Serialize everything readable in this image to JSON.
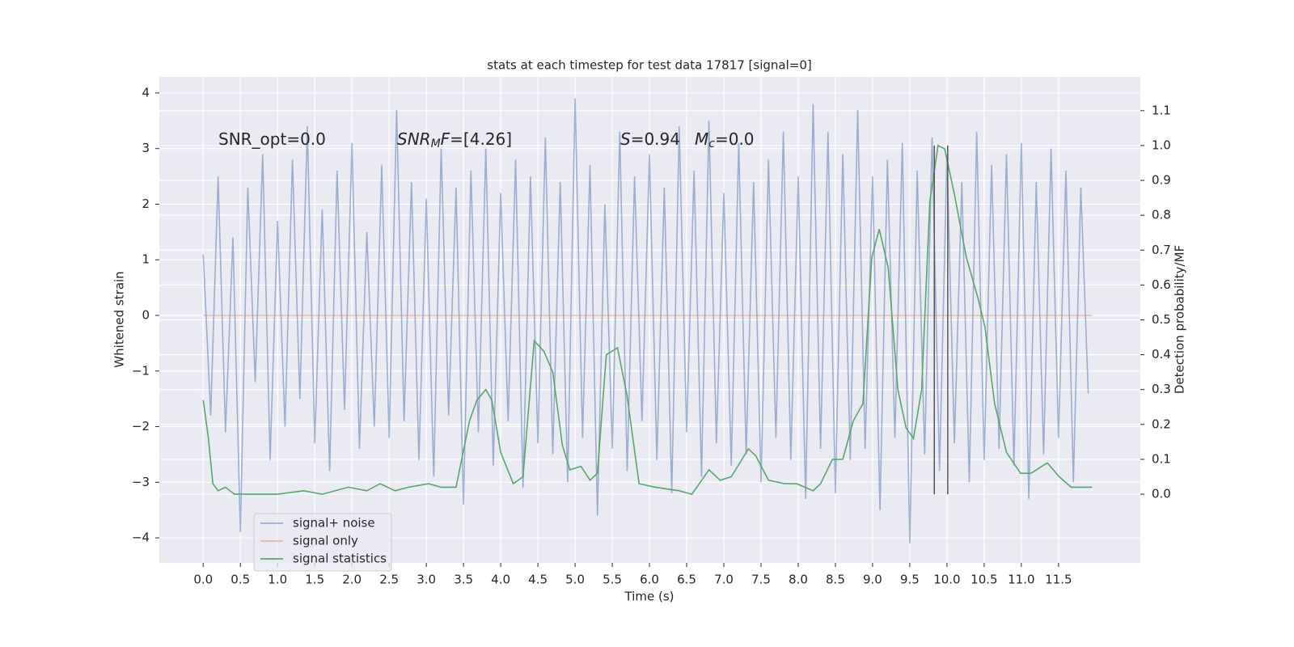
{
  "chart_data": {
    "type": "line",
    "title": "stats at each timestep for test data 17817 [signal=0]",
    "x_label": "Time (s)",
    "y_label": "Whitened strain",
    "y2_label": "Detection probability/MF",
    "xlim": [
      -0.59,
      12.6
    ],
    "ylim": [
      -4.45,
      4.29
    ],
    "y2lim": [
      -0.197,
      1.197
    ],
    "xticks": [
      {
        "value": 0,
        "label": "0.0"
      },
      {
        "value": 0.5,
        "label": "0.5"
      },
      {
        "value": 1,
        "label": "1.0"
      },
      {
        "value": 1.5,
        "label": "1.5"
      },
      {
        "value": 2,
        "label": "2.0"
      },
      {
        "value": 2.5,
        "label": "2.5"
      },
      {
        "value": 3,
        "label": "3.0"
      },
      {
        "value": 3.5,
        "label": "3.5"
      },
      {
        "value": 4,
        "label": "4.0"
      },
      {
        "value": 4.5,
        "label": "4.5"
      },
      {
        "value": 5,
        "label": "5.0"
      },
      {
        "value": 5.5,
        "label": "5.5"
      },
      {
        "value": 6,
        "label": "6.0"
      },
      {
        "value": 6.5,
        "label": "6.5"
      },
      {
        "value": 7,
        "label": "7.0"
      },
      {
        "value": 7.5,
        "label": "7.5"
      },
      {
        "value": 8,
        "label": "8.0"
      },
      {
        "value": 8.5,
        "label": "8.5"
      },
      {
        "value": 9,
        "label": "9.0"
      },
      {
        "value": 9.5,
        "label": "9.5"
      },
      {
        "value": 10,
        "label": "10.0"
      },
      {
        "value": 10.5,
        "label": "10.5"
      },
      {
        "value": 11,
        "label": "11.0"
      },
      {
        "value": 11.5,
        "label": "11.5"
      }
    ],
    "yticks": [
      {
        "value": -4,
        "label": "−4"
      },
      {
        "value": -3,
        "label": "−3"
      },
      {
        "value": -2,
        "label": "−2"
      },
      {
        "value": -1,
        "label": "−1"
      },
      0,
      1,
      2,
      3,
      4
    ],
    "y2ticks": [
      {
        "value": 0,
        "label": "0.0"
      },
      {
        "value": 0.1,
        "label": "0.1"
      },
      {
        "value": 0.2,
        "label": "0.2"
      },
      {
        "value": 0.3,
        "label": "0.3"
      },
      {
        "value": 0.4,
        "label": "0.4"
      },
      {
        "value": 0.5,
        "label": "0.5"
      },
      {
        "value": 0.6,
        "label": "0.6"
      },
      {
        "value": 0.7,
        "label": "0.7"
      },
      {
        "value": 0.8,
        "label": "0.8"
      },
      {
        "value": 0.9,
        "label": "0.9"
      },
      {
        "value": 1,
        "label": "1.0"
      },
      {
        "value": 1.1,
        "label": "1.1"
      }
    ],
    "grid": true,
    "legend": "lower left",
    "series": [
      {
        "name": "signal+ noise",
        "color": "#4c72b0",
        "alpha": 0.5,
        "x": [
          0,
          0.1,
          0.2,
          0.3,
          0.4,
          0.5,
          0.6,
          0.7,
          0.8,
          0.9,
          1,
          1.1,
          1.2,
          1.3,
          1.4,
          1.5,
          1.6,
          1.7,
          1.8,
          1.9,
          2,
          2.1,
          2.2,
          2.3,
          2.4,
          2.5,
          2.6,
          2.7,
          2.8,
          2.9,
          3,
          3.1,
          3.2,
          3.3,
          3.4,
          3.5,
          3.6,
          3.7,
          3.8,
          3.9,
          4,
          4.1,
          4.2,
          4.3,
          4.4,
          4.5,
          4.6,
          4.7,
          4.8,
          4.9,
          5,
          5.1,
          5.2,
          5.3,
          5.4,
          5.5,
          5.6,
          5.7,
          5.8,
          5.9,
          6,
          6.1,
          6.2,
          6.3,
          6.4,
          6.5,
          6.6,
          6.7,
          6.8,
          6.9,
          7,
          7.1,
          7.2,
          7.3,
          7.4,
          7.5,
          7.6,
          7.7,
          7.8,
          7.9,
          8,
          8.1,
          8.2,
          8.3,
          8.4,
          8.5,
          8.6,
          8.7,
          8.8,
          8.9,
          9,
          9.1,
          9.2,
          9.3,
          9.4,
          9.5,
          9.6,
          9.7,
          9.8,
          9.9,
          10,
          10.1,
          10.2,
          10.3,
          10.4,
          10.5,
          10.6,
          10.7,
          10.8,
          10.9,
          11,
          11.1,
          11.2,
          11.3,
          11.4,
          11.5,
          11.6,
          11.7,
          11.8,
          11.9
        ],
        "values": [
          1.1,
          -1.8,
          2.5,
          -2.1,
          1.4,
          -3.9,
          2.3,
          -1.2,
          2.9,
          -2.6,
          1.7,
          -2.0,
          2.8,
          -1.5,
          3.4,
          -2.3,
          1.9,
          -2.8,
          2.6,
          -1.7,
          3.1,
          -2.4,
          1.5,
          -2.0,
          2.7,
          -2.2,
          3.7,
          -1.9,
          2.4,
          -2.6,
          2.1,
          -2.9,
          3.0,
          -1.8,
          2.3,
          -3.4,
          2.6,
          -2.1,
          3.0,
          -2.7,
          2.2,
          -1.9,
          2.8,
          -3.1,
          2.5,
          -2.3,
          3.2,
          -2.5,
          2.4,
          -3.0,
          3.9,
          -2.2,
          2.7,
          -3.6,
          2.0,
          -2.4,
          3.3,
          -2.8,
          2.5,
          -1.9,
          2.9,
          -2.6,
          2.3,
          -3.2,
          3.4,
          -2.1,
          2.6,
          -2.9,
          3.5,
          -2.3,
          2.2,
          -2.7,
          3.1,
          -2.5,
          2.4,
          -3.0,
          2.8,
          -2.2,
          3.3,
          -2.6,
          2.5,
          -3.3,
          3.8,
          -2.4,
          3.3,
          -3.2,
          2.9,
          -2.6,
          3.7,
          -2.4,
          2.5,
          -3.5,
          2.8,
          -2.2,
          3.1,
          -4.1,
          2.6,
          -2.5,
          3.2,
          -2.8,
          2.9,
          -2.3,
          2.4,
          -3.0,
          3.3,
          -2.6,
          2.7,
          -2.4,
          2.9,
          -2.7,
          3.1,
          -3.3,
          2.4,
          -2.5,
          3.0,
          -2.2,
          2.6,
          -3.0,
          2.3,
          -1.4
        ]
      },
      {
        "name": "signal only",
        "color": "#dd8452",
        "alpha": 0.5,
        "x": [
          0,
          11.95
        ],
        "values": [
          0,
          0
        ]
      },
      {
        "name": "signal statistics",
        "color": "#55a868",
        "alpha": 1,
        "axis": "y2",
        "x": [
          0,
          0.07,
          0.13,
          0.2,
          0.3,
          0.42,
          0.65,
          1.0,
          1.35,
          1.6,
          1.95,
          2.2,
          2.38,
          2.58,
          2.76,
          3.03,
          3.2,
          3.4,
          3.58,
          3.68,
          3.8,
          3.88,
          4.0,
          4.17,
          4.3,
          4.45,
          4.58,
          4.7,
          4.83,
          4.93,
          5.08,
          5.2,
          5.3,
          5.42,
          5.57,
          5.7,
          5.86,
          6.08,
          6.4,
          6.57,
          6.67,
          6.8,
          6.95,
          7.1,
          7.33,
          7.43,
          7.6,
          7.82,
          7.98,
          8.2,
          8.3,
          8.46,
          8.6,
          8.74,
          8.87,
          8.99,
          9.09,
          9.21,
          9.34,
          9.45,
          9.55,
          9.66,
          9.77,
          9.88,
          9.97,
          10.1,
          10.26,
          10.42,
          10.51,
          10.64,
          10.8,
          10.99,
          11.13,
          11.35,
          11.51,
          11.67,
          11.95
        ],
        "values": [
          0.27,
          0.16,
          0.03,
          0.01,
          0.02,
          0.0,
          0.0,
          0.0,
          0.01,
          0.0,
          0.02,
          0.01,
          0.03,
          0.01,
          0.02,
          0.03,
          0.02,
          0.02,
          0.21,
          0.27,
          0.3,
          0.27,
          0.12,
          0.03,
          0.05,
          0.44,
          0.41,
          0.35,
          0.14,
          0.07,
          0.08,
          0.04,
          0.06,
          0.4,
          0.42,
          0.28,
          0.03,
          0.02,
          0.01,
          0.0,
          0.03,
          0.07,
          0.04,
          0.05,
          0.13,
          0.11,
          0.04,
          0.03,
          0.03,
          0.01,
          0.03,
          0.1,
          0.1,
          0.21,
          0.26,
          0.68,
          0.76,
          0.65,
          0.3,
          0.19,
          0.16,
          0.3,
          0.84,
          1.0,
          0.99,
          0.86,
          0.68,
          0.56,
          0.48,
          0.26,
          0.12,
          0.06,
          0.06,
          0.09,
          0.05,
          0.02,
          0.02
        ]
      }
    ],
    "vlines": {
      "x": [
        9.83,
        10.01
      ],
      "y2": [
        0,
        1
      ],
      "color": "#555555"
    },
    "annotations": [
      {
        "parts": [
          {
            "text": "SNR_opt=0.0"
          }
        ]
      },
      {
        "parts": [
          {
            "text": "SNR",
            "italic": true
          },
          {
            "text": "M",
            "italic": true,
            "sub": true
          },
          {
            "text": "F",
            "italic": true
          },
          {
            "text": "=[4.26]"
          }
        ]
      },
      {
        "parts": [
          {
            "text": "S",
            "italic": true
          },
          {
            "text": "=0.94"
          }
        ]
      },
      {
        "parts": [
          {
            "text": "M",
            "italic": true
          },
          {
            "text": "c",
            "italic": true,
            "sub": true
          },
          {
            "text": "=0.0"
          }
        ]
      }
    ]
  }
}
